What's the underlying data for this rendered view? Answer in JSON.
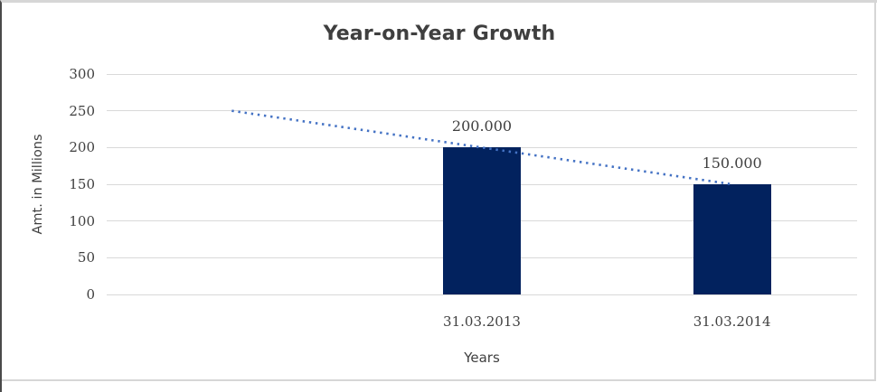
{
  "window": {
    "background_color": "#FFFFFF",
    "border_color": "#D6D6D6"
  },
  "chart_data": {
    "type": "bar",
    "title": "Year-on-Year Growth",
    "xlabel": "Years",
    "ylabel": "Amt. in Millions",
    "categories": [
      "31.03.2013",
      "31.03.2014"
    ],
    "values": [
      200,
      150
    ],
    "data_labels": [
      "200.000",
      "150.000"
    ],
    "ylim": [
      0,
      300
    ],
    "yticks": [
      300,
      250,
      200,
      150,
      100,
      50,
      0
    ],
    "grid": "horizontal",
    "legend": "none",
    "bar_color": "#02225E",
    "gridline_color": "#D9D9D9",
    "text_color": "#404040",
    "title_color": "#3F3F3F",
    "layout_hints": {
      "category_slots": 3,
      "bar_slot_indices": [
        1,
        2
      ],
      "note": "first category slot is empty; bars sit in slots 2 and 3 of 3"
    },
    "trendline": {
      "type": "linear",
      "style": "dotted",
      "color": "#4472C4",
      "start_slot": 0,
      "start_value": 250,
      "end_slot": 2,
      "end_value": 150
    }
  }
}
